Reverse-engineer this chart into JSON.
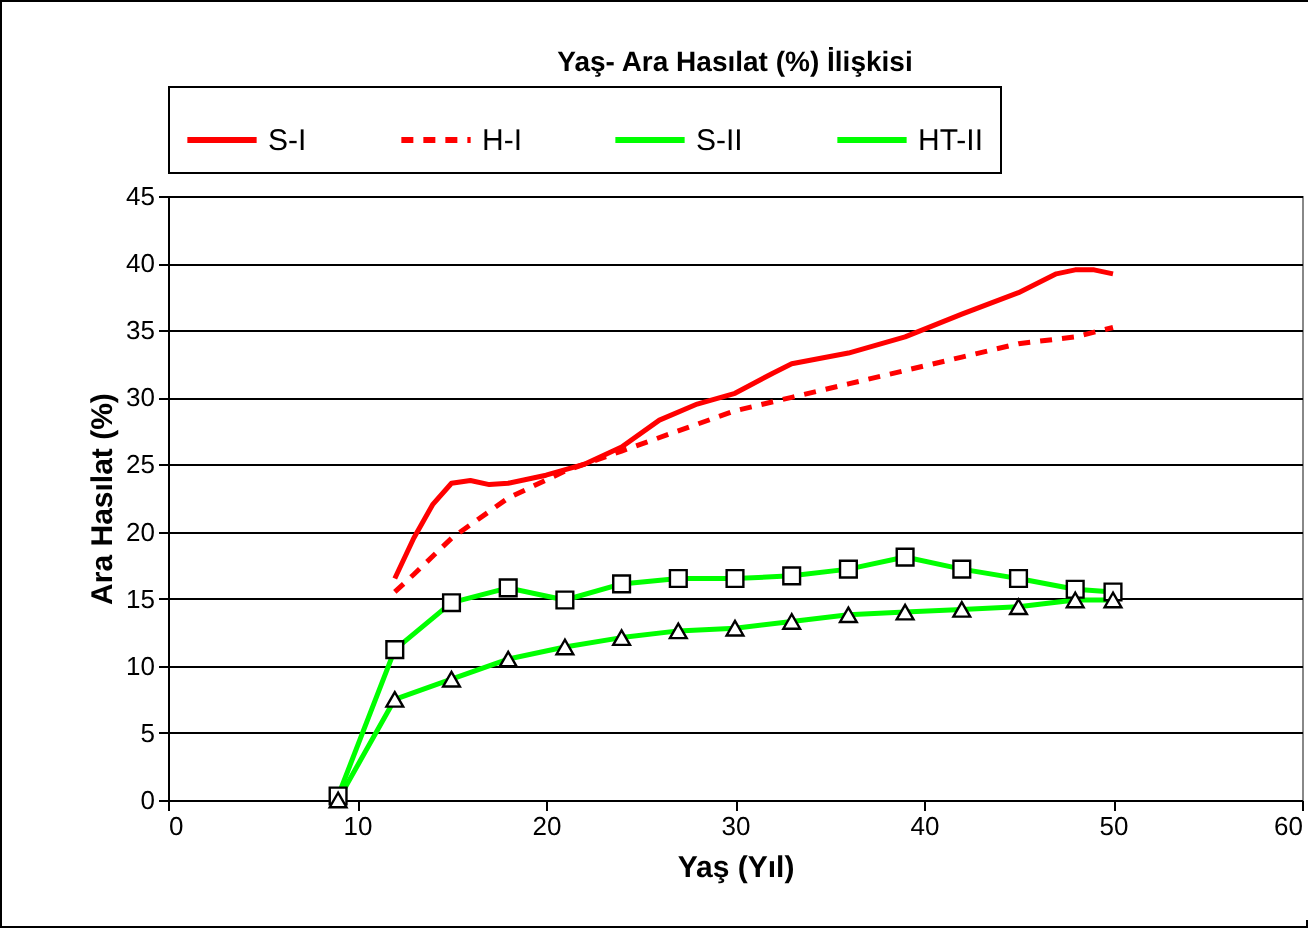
{
  "chart_data": {
    "type": "line",
    "title": "Yaş- Ara Hasılat (%) İlişkisi",
    "xlabel": "Yaş (Yıl)",
    "ylabel": "Ara Hasılat (%)",
    "xlim": [
      0,
      60
    ],
    "xticks": [
      0,
      10,
      20,
      30,
      40,
      50,
      60
    ],
    "ylim": [
      0,
      45
    ],
    "yticks": [
      0,
      5,
      10,
      15,
      20,
      25,
      30,
      35,
      40,
      45
    ],
    "grid": "y",
    "legend": "top",
    "series": [
      {
        "name": "S-I",
        "color": "#ff0000",
        "line_style": "solid",
        "marker": "none",
        "x": [
          12,
          13,
          14,
          15,
          16,
          17,
          18,
          20,
          22,
          24,
          26,
          28,
          30,
          32,
          33,
          36,
          39,
          42,
          45,
          47,
          48,
          49,
          50
        ],
        "values": [
          16.5,
          19.5,
          22,
          23.6,
          23.8,
          23.5,
          23.6,
          24.2,
          25,
          26.3,
          28.3,
          29.5,
          30.3,
          31.8,
          32.5,
          33.3,
          34.5,
          36.2,
          37.8,
          39.2,
          39.5,
          39.5,
          39.2
        ]
      },
      {
        "name": "H-I",
        "color": "#ff0000",
        "line_style": "dashed",
        "marker": "none",
        "x": [
          12,
          13,
          15,
          18,
          21,
          24,
          27,
          30,
          33,
          36,
          39,
          42,
          45,
          48,
          50
        ],
        "values": [
          15.5,
          16.8,
          19.5,
          22.5,
          24.5,
          26,
          27.5,
          29,
          30,
          31,
          32,
          33,
          34,
          34.5,
          35.2
        ]
      },
      {
        "name": "S-II",
        "color": "#00ff00",
        "line_style": "solid",
        "marker": "square",
        "x": [
          9,
          12,
          15,
          18,
          21,
          24,
          27,
          30,
          33,
          36,
          39,
          42,
          45,
          48,
          50
        ],
        "values": [
          0.3,
          11.2,
          14.7,
          15.8,
          14.9,
          16.1,
          16.5,
          16.5,
          16.7,
          17.2,
          18.1,
          17.2,
          16.5,
          15.7,
          15.5
        ]
      },
      {
        "name": "HT-II",
        "color": "#00ff00",
        "line_style": "solid",
        "marker": "triangle",
        "x": [
          9,
          12,
          15,
          18,
          21,
          24,
          27,
          30,
          33,
          36,
          39,
          42,
          45,
          48,
          50
        ],
        "values": [
          0,
          7.5,
          9,
          10.5,
          11.4,
          12.1,
          12.6,
          12.8,
          13.3,
          13.8,
          14,
          14.2,
          14.4,
          14.9,
          14.9
        ]
      }
    ]
  }
}
